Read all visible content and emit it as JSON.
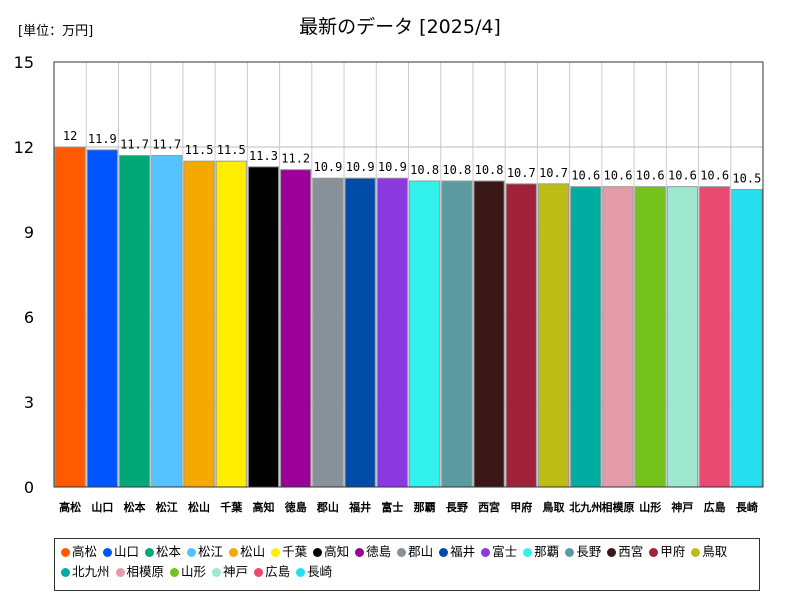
{
  "header": {
    "unit_label": "[単位：万円]",
    "title": "最新のデータ [2025/4]"
  },
  "chart_data": {
    "type": "bar",
    "title": "最新のデータ [2025/4]",
    "ylabel": "[単位：万円]",
    "ylim": [
      0,
      15
    ],
    "yticks": [
      0,
      3,
      6,
      9,
      12,
      15
    ],
    "grid": true,
    "legend_position": "bottom",
    "categories": [
      "高松",
      "山口",
      "松本",
      "松江",
      "松山",
      "千葉",
      "高知",
      "徳島",
      "郡山",
      "福井",
      "富士",
      "那覇",
      "長野",
      "西宮",
      "甲府",
      "鳥取",
      "北九州",
      "相模原",
      "山形",
      "神戸",
      "広島",
      "長崎"
    ],
    "axis_labels": [
      "高松",
      "山口",
      "松本",
      "松江",
      "松山",
      "千葉",
      "高知",
      "徳島",
      "郡山",
      "福井",
      "富士",
      "那覇",
      "長野",
      "西宮",
      "甲府",
      "鳥取",
      "北九州",
      "相模原",
      "山形",
      "神戸",
      "広島",
      "長崎"
    ],
    "values": [
      12,
      11.9,
      11.7,
      11.7,
      11.5,
      11.5,
      11.3,
      11.2,
      10.9,
      10.9,
      10.9,
      10.8,
      10.8,
      10.8,
      10.7,
      10.7,
      10.6,
      10.6,
      10.6,
      10.6,
      10.6,
      10.5
    ],
    "value_labels": [
      "12",
      "11.9",
      "11.7",
      "11.7",
      "11.5",
      "11.5",
      "11.3",
      "11.2",
      "10.9",
      "10.9",
      "10.9",
      "10.8",
      "10.8",
      "10.8",
      "10.7",
      "10.7",
      "10.6",
      "10.6",
      "10.6",
      "10.6",
      "10.6",
      "10.5"
    ],
    "colors": [
      "#ff5a00",
      "#0055ff",
      "#00a878",
      "#55c3ff",
      "#f5a800",
      "#ffee00",
      "#000000",
      "#9b0099",
      "#87919a",
      "#004da8",
      "#8a38e0",
      "#33f1ed",
      "#5a9aa0",
      "#3a1818",
      "#a0223a",
      "#bdbd16",
      "#00aca0",
      "#e59caa",
      "#76c21c",
      "#9ee8d0",
      "#e84a72",
      "#26dfef"
    ]
  }
}
